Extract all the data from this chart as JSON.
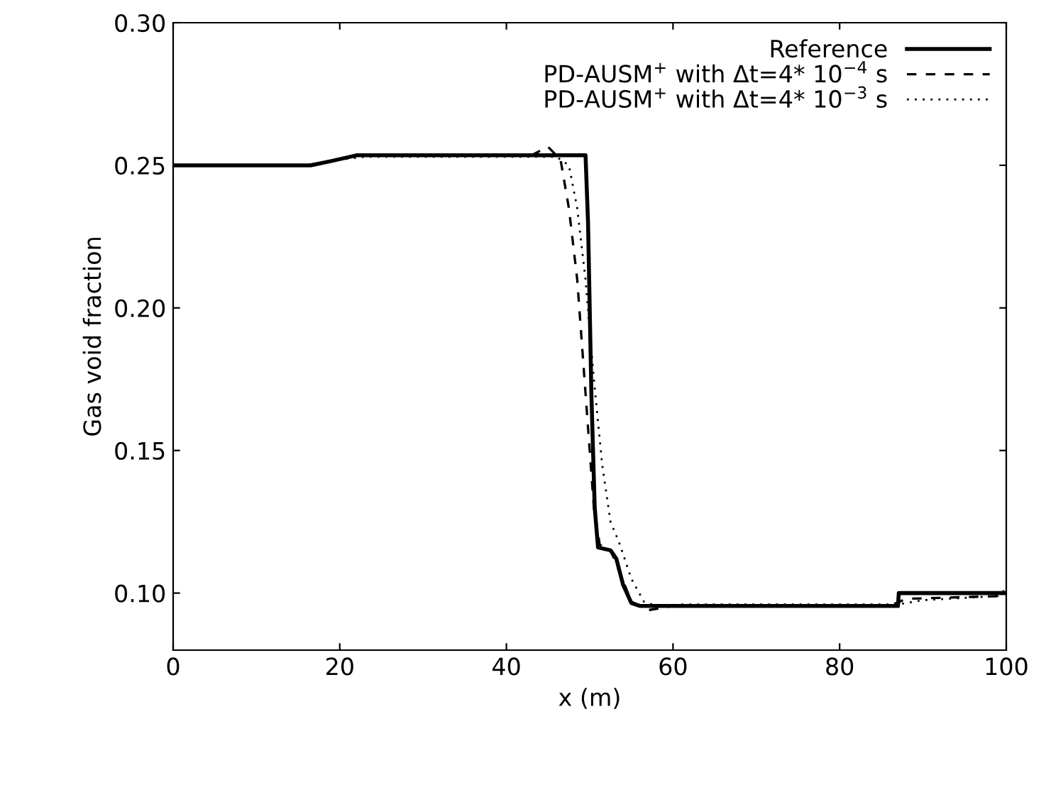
{
  "chart_data": {
    "type": "line",
    "xlabel": "x (m)",
    "ylabel": "Gas void fraction",
    "xlim": [
      0,
      100
    ],
    "ylim": [
      0.08,
      0.3
    ],
    "xticks": [
      0,
      20,
      40,
      60,
      80,
      100
    ],
    "yticks": [
      {
        "value": 0.1,
        "label": "0.10"
      },
      {
        "value": 0.15,
        "label": "0.15"
      },
      {
        "value": 0.2,
        "label": "0.20"
      },
      {
        "value": 0.25,
        "label": "0.25"
      },
      {
        "value": 0.3,
        "label": "0.30"
      }
    ],
    "grid": false,
    "legend": "top right",
    "series": [
      {
        "name": "Reference",
        "color": "#000000",
        "line_style": "solid",
        "x": [
          0,
          16.5,
          19,
          22,
          49.5,
          49.8,
          50.2,
          50.6,
          51,
          52.5,
          53.2,
          54,
          55,
          56,
          87,
          87.1,
          100
        ],
        "values": [
          0.25,
          0.25,
          0.2515,
          0.2535,
          0.2535,
          0.23,
          0.17,
          0.13,
          0.116,
          0.115,
          0.112,
          0.103,
          0.0965,
          0.0955,
          0.0955,
          0.1,
          0.1
        ]
      },
      {
        "name": "PD-AUSM$^{+}$ with Δt=4* 10$^{−4}$ s",
        "color": "#000000",
        "line_style": "dashed",
        "x": [
          0,
          16,
          19,
          22,
          43,
          45,
          46.5,
          47.5,
          48.5,
          49.5,
          50.5,
          51.2,
          52.5,
          53.5,
          55,
          57,
          60,
          86,
          88,
          100
        ],
        "values": [
          0.25,
          0.25,
          0.2515,
          0.2535,
          0.2535,
          0.2565,
          0.252,
          0.235,
          0.21,
          0.17,
          0.13,
          0.117,
          0.115,
          0.108,
          0.097,
          0.094,
          0.0955,
          0.0955,
          0.098,
          0.099
        ]
      },
      {
        "name": "PD-AUSM$^{+}$ with Δt=4* 10$^{−3}$ s",
        "color": "#000000",
        "line_style": "dotted",
        "x": [
          0,
          16,
          20,
          23,
          46,
          47.5,
          48.5,
          49.5,
          50.5,
          51.5,
          52.5,
          53.5,
          55,
          56.5,
          58,
          61,
          87,
          90,
          99,
          100
        ],
        "values": [
          0.25,
          0.25,
          0.252,
          0.253,
          0.253,
          0.25,
          0.235,
          0.21,
          0.175,
          0.145,
          0.125,
          0.118,
          0.105,
          0.097,
          0.0955,
          0.096,
          0.096,
          0.0975,
          0.099,
          0.1015
        ]
      }
    ]
  }
}
